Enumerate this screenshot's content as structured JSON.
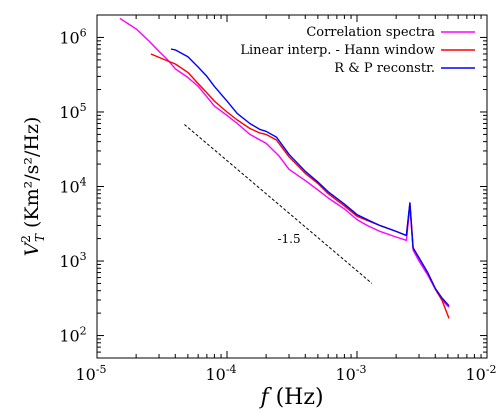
{
  "chart_data": {
    "type": "line",
    "x_scale": "log",
    "y_scale": "log",
    "xlim": [
      1e-05,
      0.01
    ],
    "ylim": [
      50,
      2000000.0
    ],
    "x_ticks": [
      {
        "value": 1e-05,
        "base": "10",
        "exp": "-5"
      },
      {
        "value": 0.0001,
        "base": "10",
        "exp": "-4"
      },
      {
        "value": 0.001,
        "base": "10",
        "exp": "-3"
      },
      {
        "value": 0.01,
        "base": "10",
        "exp": "-2"
      }
    ],
    "y_ticks": [
      {
        "value": 100,
        "base": "10",
        "exp": "2"
      },
      {
        "value": 1000,
        "base": "10",
        "exp": "3"
      },
      {
        "value": 10000,
        "base": "10",
        "exp": "4"
      },
      {
        "value": 100000,
        "base": "10",
        "exp": "5"
      },
      {
        "value": 1000000,
        "base": "10",
        "exp": "6"
      }
    ],
    "xlabel": {
      "var": "f",
      "unit": " (Hz)"
    },
    "ylabel": {
      "var": "V",
      "sub": "T",
      "sup": "2",
      "unit": " (Km²/s²/Hz)"
    },
    "legend_position": "top-right",
    "series": [
      {
        "name": "Correlation spectra",
        "color": "#ff00ff",
        "points": [
          [
            1.5e-05,
            1800000.0
          ],
          [
            2e-05,
            1300000.0
          ],
          [
            2.5e-05,
            900000.0
          ],
          [
            3e-05,
            650000.0
          ],
          [
            3.5e-05,
            500000.0
          ],
          [
            4e-05,
            380000.0
          ],
          [
            5e-05,
            290000.0
          ],
          [
            6e-05,
            220000.0
          ],
          [
            7e-05,
            160000.0
          ],
          [
            8e-05,
            120000.0
          ],
          [
            0.0001,
            90000.0
          ],
          [
            0.00012,
            70000.0
          ],
          [
            0.00015,
            50000.0
          ],
          [
            0.0002,
            38000.0
          ],
          [
            0.00025,
            26000.0
          ],
          [
            0.0003,
            17000.0
          ],
          [
            0.0004,
            12000.0
          ],
          [
            0.0005,
            9000
          ],
          [
            0.0006,
            7000
          ],
          [
            0.0008,
            5000
          ],
          [
            0.001,
            3600
          ],
          [
            0.0012,
            3000
          ],
          [
            0.0015,
            2500
          ],
          [
            0.002,
            2100
          ],
          [
            0.0024,
            1900
          ],
          [
            0.00255,
            5500
          ],
          [
            0.0027,
            1400
          ],
          [
            0.003,
            1000
          ],
          [
            0.0035,
            650
          ],
          [
            0.004,
            420
          ],
          [
            0.0045,
            300
          ],
          [
            0.0051,
            240
          ]
        ]
      },
      {
        "name": "Linear interp. - Hann window",
        "color": "#ff0000",
        "points": [
          [
            2.6e-05,
            600000.0
          ],
          [
            3e-05,
            540000.0
          ],
          [
            4e-05,
            440000.0
          ],
          [
            5e-05,
            340000.0
          ],
          [
            6e-05,
            240000.0
          ],
          [
            7e-05,
            180000.0
          ],
          [
            8e-05,
            140000.0
          ],
          [
            0.0001,
            100000.0
          ],
          [
            0.00012,
            78000.0
          ],
          [
            0.00015,
            60000.0
          ],
          [
            0.00018,
            52000.0
          ],
          [
            0.0002,
            50000.0
          ],
          [
            0.00024,
            42000.0
          ],
          [
            0.0003,
            25000.0
          ],
          [
            0.0004,
            15000.0
          ],
          [
            0.0005,
            11000.0
          ],
          [
            0.0006,
            8000
          ],
          [
            0.0008,
            5500
          ],
          [
            0.001,
            4000
          ],
          [
            0.0012,
            3500
          ],
          [
            0.0015,
            3000
          ],
          [
            0.002,
            2500
          ],
          [
            0.0024,
            2200
          ],
          [
            0.00255,
            6000
          ],
          [
            0.0027,
            1500
          ],
          [
            0.003,
            1100
          ],
          [
            0.0035,
            700
          ],
          [
            0.004,
            420
          ],
          [
            0.0045,
            300
          ],
          [
            0.0051,
            170
          ]
        ]
      },
      {
        "name": "R & P reconstr.",
        "color": "#0000ff",
        "points": [
          [
            3.7e-05,
            700000.0
          ],
          [
            4e-05,
            680000.0
          ],
          [
            5e-05,
            550000.0
          ],
          [
            6e-05,
            400000.0
          ],
          [
            7e-05,
            300000.0
          ],
          [
            8e-05,
            220000.0
          ],
          [
            0.0001,
            140000.0
          ],
          [
            0.00012,
            95000.0
          ],
          [
            0.00015,
            70000.0
          ],
          [
            0.00018,
            58000.0
          ],
          [
            0.0002,
            55000.0
          ],
          [
            0.00024,
            46000.0
          ],
          [
            0.0003,
            27000.0
          ],
          [
            0.0004,
            16000.0
          ],
          [
            0.0005,
            11500.0
          ],
          [
            0.0006,
            8500
          ],
          [
            0.0008,
            5800
          ],
          [
            0.001,
            4200
          ],
          [
            0.0012,
            3600
          ],
          [
            0.0015,
            3000
          ],
          [
            0.002,
            2500
          ],
          [
            0.0024,
            2200
          ],
          [
            0.00255,
            6000
          ],
          [
            0.0027,
            1500
          ],
          [
            0.003,
            1100
          ],
          [
            0.0035,
            700
          ],
          [
            0.004,
            430
          ],
          [
            0.0045,
            320
          ],
          [
            0.0051,
            250
          ]
        ]
      }
    ],
    "reference_line": {
      "points": [
        [
          4.7e-05,
          68000.0
        ],
        [
          0.0013,
          502
        ]
      ],
      "color": "#000000",
      "dash": true
    },
    "annotation": {
      "text": "-1.5",
      "x": 0.0003,
      "y": 1750
    }
  }
}
